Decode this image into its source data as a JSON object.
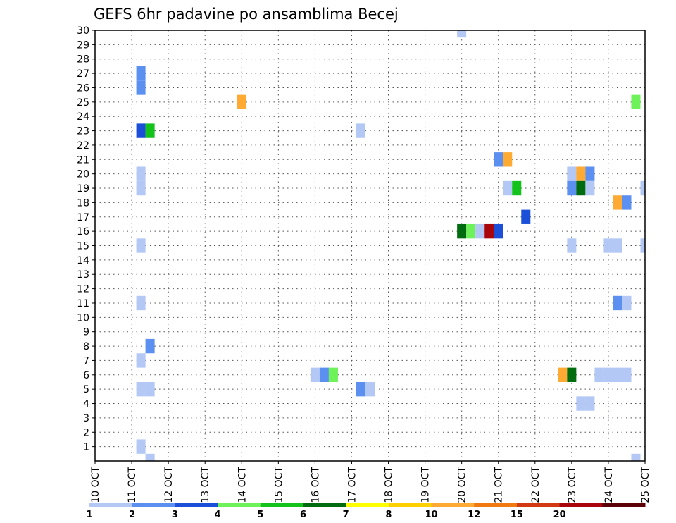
{
  "chart_data": {
    "type": "heatmap",
    "title": "GEFS 6hr padavine po ansamblima Becej",
    "x_tick_labels": [
      "10 OCT",
      "11 OCT",
      "12 OCT",
      "13 OCT",
      "14 OCT",
      "15 OCT",
      "16 OCT",
      "17 OCT",
      "18 OCT",
      "19 OCT",
      "20 OCT",
      "21 OCT",
      "22 OCT",
      "23 OCT",
      "24 OCT",
      "25 OCT"
    ],
    "y_tick_labels": [
      "1",
      "2",
      "3",
      "4",
      "5",
      "6",
      "7",
      "8",
      "9",
      "10",
      "11",
      "12",
      "13",
      "14",
      "15",
      "16",
      "17",
      "18",
      "19",
      "20",
      "21",
      "22",
      "23",
      "24",
      "25",
      "26",
      "27",
      "28",
      "29",
      "30"
    ],
    "xlim": [
      0,
      15
    ],
    "ylim": [
      0,
      30
    ],
    "grid": true,
    "colorbar": {
      "labels": [
        "1",
        "2",
        "3",
        "4",
        "5",
        "6",
        "7",
        "8",
        "10",
        "12",
        "15",
        "20"
      ],
      "colors": [
        "#b3c8f5",
        "#5b8ff0",
        "#1c4fd8",
        "#6ef25a",
        "#14c21c",
        "#006b0f",
        "#ffff00",
        "#ffd000",
        "#ffaa33",
        "#f07a10",
        "#d23a14",
        "#a8060c",
        "#5c0008"
      ]
    },
    "cells": [
      {
        "t": 1.25,
        "m": 27,
        "c": 1
      },
      {
        "t": 1.25,
        "m": 26,
        "c": 1
      },
      {
        "t": 1.25,
        "m": 23,
        "c": 2
      },
      {
        "t": 1.5,
        "m": 23,
        "c": 4
      },
      {
        "t": 1.25,
        "m": 20,
        "c": 0
      },
      {
        "t": 1.25,
        "m": 19,
        "c": 0
      },
      {
        "t": 1.25,
        "m": 15,
        "c": 0
      },
      {
        "t": 1.25,
        "m": 11,
        "c": 0
      },
      {
        "t": 1.5,
        "m": 8,
        "c": 1
      },
      {
        "t": 1.25,
        "m": 7,
        "c": 0
      },
      {
        "t": 1.25,
        "m": 5,
        "c": 0
      },
      {
        "t": 1.5,
        "m": 5,
        "c": 0
      },
      {
        "t": 1.25,
        "m": 1,
        "c": 0
      },
      {
        "t": 1.5,
        "m": 0,
        "c": 0
      },
      {
        "t": 4.0,
        "m": 25,
        "c": 8
      },
      {
        "t": 6.0,
        "m": 6,
        "c": 0
      },
      {
        "t": 6.25,
        "m": 6,
        "c": 1
      },
      {
        "t": 6.5,
        "m": 6,
        "c": 3
      },
      {
        "t": 7.25,
        "m": 23,
        "c": 0
      },
      {
        "t": 7.25,
        "m": 5,
        "c": 1
      },
      {
        "t": 7.5,
        "m": 5,
        "c": 0
      },
      {
        "t": 10.0,
        "m": 30,
        "c": 0
      },
      {
        "t": 10.0,
        "m": 16,
        "c": 5
      },
      {
        "t": 10.25,
        "m": 16,
        "c": 3
      },
      {
        "t": 10.5,
        "m": 16,
        "c": 0
      },
      {
        "t": 10.75,
        "m": 16,
        "c": 11
      },
      {
        "t": 11.0,
        "m": 16,
        "c": 2
      },
      {
        "t": 11.0,
        "m": 21,
        "c": 1
      },
      {
        "t": 11.25,
        "m": 21,
        "c": 8
      },
      {
        "t": 11.25,
        "m": 19,
        "c": 0
      },
      {
        "t": 11.5,
        "m": 19,
        "c": 4
      },
      {
        "t": 11.75,
        "m": 17,
        "c": 2
      },
      {
        "t": 12.75,
        "m": 6,
        "c": 8
      },
      {
        "t": 13.0,
        "m": 6,
        "c": 5
      },
      {
        "t": 13.0,
        "m": 20,
        "c": 0
      },
      {
        "t": 13.25,
        "m": 20,
        "c": 8
      },
      {
        "t": 13.5,
        "m": 20,
        "c": 1
      },
      {
        "t": 13.0,
        "m": 19,
        "c": 1
      },
      {
        "t": 13.25,
        "m": 19,
        "c": 5
      },
      {
        "t": 13.5,
        "m": 19,
        "c": 0
      },
      {
        "t": 13.0,
        "m": 15,
        "c": 0
      },
      {
        "t": 13.25,
        "m": 4,
        "c": 0
      },
      {
        "t": 13.5,
        "m": 4,
        "c": 0
      },
      {
        "t": 13.75,
        "m": 6,
        "c": 0
      },
      {
        "t": 14.0,
        "m": 6,
        "c": 0
      },
      {
        "t": 14.25,
        "m": 6,
        "c": 0
      },
      {
        "t": 14.5,
        "m": 6,
        "c": 0
      },
      {
        "t": 14.0,
        "m": 15,
        "c": 0
      },
      {
        "t": 14.25,
        "m": 15,
        "c": 0
      },
      {
        "t": 14.25,
        "m": 18,
        "c": 8
      },
      {
        "t": 14.5,
        "m": 18,
        "c": 1
      },
      {
        "t": 14.25,
        "m": 11,
        "c": 1
      },
      {
        "t": 14.5,
        "m": 11,
        "c": 0
      },
      {
        "t": 14.75,
        "m": 25,
        "c": 3
      },
      {
        "t": 15.0,
        "m": 19,
        "c": 0
      },
      {
        "t": 15.0,
        "m": 15,
        "c": 0
      },
      {
        "t": 14.75,
        "m": 0,
        "c": 0
      }
    ]
  }
}
